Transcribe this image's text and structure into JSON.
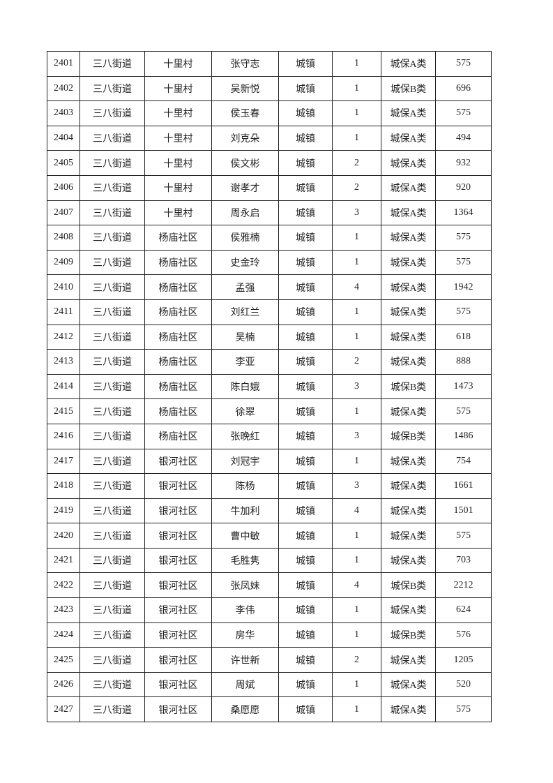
{
  "table": {
    "rows": [
      [
        "2401",
        "三八街道",
        "十里村",
        "张守志",
        "城镇",
        "1",
        "城保A类",
        "575"
      ],
      [
        "2402",
        "三八街道",
        "十里村",
        "吴新悦",
        "城镇",
        "1",
        "城保B类",
        "696"
      ],
      [
        "2403",
        "三八街道",
        "十里村",
        "侯玉春",
        "城镇",
        "1",
        "城保A类",
        "575"
      ],
      [
        "2404",
        "三八街道",
        "十里村",
        "刘克朵",
        "城镇",
        "1",
        "城保A类",
        "494"
      ],
      [
        "2405",
        "三八街道",
        "十里村",
        "侯文彬",
        "城镇",
        "2",
        "城保A类",
        "932"
      ],
      [
        "2406",
        "三八街道",
        "十里村",
        "谢孝才",
        "城镇",
        "2",
        "城保A类",
        "920"
      ],
      [
        "2407",
        "三八街道",
        "十里村",
        "周永启",
        "城镇",
        "3",
        "城保A类",
        "1364"
      ],
      [
        "2408",
        "三八街道",
        "杨庙社区",
        "侯雅楠",
        "城镇",
        "1",
        "城保A类",
        "575"
      ],
      [
        "2409",
        "三八街道",
        "杨庙社区",
        "史金玲",
        "城镇",
        "1",
        "城保A类",
        "575"
      ],
      [
        "2410",
        "三八街道",
        "杨庙社区",
        "孟强",
        "城镇",
        "4",
        "城保A类",
        "1942"
      ],
      [
        "2411",
        "三八街道",
        "杨庙社区",
        "刘红兰",
        "城镇",
        "1",
        "城保A类",
        "575"
      ],
      [
        "2412",
        "三八街道",
        "杨庙社区",
        "吴楠",
        "城镇",
        "1",
        "城保A类",
        "618"
      ],
      [
        "2413",
        "三八街道",
        "杨庙社区",
        "李亚",
        "城镇",
        "2",
        "城保A类",
        "888"
      ],
      [
        "2414",
        "三八街道",
        "杨庙社区",
        "陈白娥",
        "城镇",
        "3",
        "城保B类",
        "1473"
      ],
      [
        "2415",
        "三八街道",
        "杨庙社区",
        "徐翠",
        "城镇",
        "1",
        "城保A类",
        "575"
      ],
      [
        "2416",
        "三八街道",
        "杨庙社区",
        "张晚红",
        "城镇",
        "3",
        "城保B类",
        "1486"
      ],
      [
        "2417",
        "三八街道",
        "银河社区",
        "刘冠宇",
        "城镇",
        "1",
        "城保A类",
        "754"
      ],
      [
        "2418",
        "三八街道",
        "银河社区",
        "陈杨",
        "城镇",
        "3",
        "城保A类",
        "1661"
      ],
      [
        "2419",
        "三八街道",
        "银河社区",
        "牛加利",
        "城镇",
        "4",
        "城保A类",
        "1501"
      ],
      [
        "2420",
        "三八街道",
        "银河社区",
        "曹中敏",
        "城镇",
        "1",
        "城保A类",
        "575"
      ],
      [
        "2421",
        "三八街道",
        "银河社区",
        "毛胜隽",
        "城镇",
        "1",
        "城保A类",
        "703"
      ],
      [
        "2422",
        "三八街道",
        "银河社区",
        "张凤妹",
        "城镇",
        "4",
        "城保B类",
        "2212"
      ],
      [
        "2423",
        "三八街道",
        "银河社区",
        "李伟",
        "城镇",
        "1",
        "城保A类",
        "624"
      ],
      [
        "2424",
        "三八街道",
        "银河社区",
        "房华",
        "城镇",
        "1",
        "城保B类",
        "576"
      ],
      [
        "2425",
        "三八街道",
        "银河社区",
        "许世新",
        "城镇",
        "2",
        "城保A类",
        "1205"
      ],
      [
        "2426",
        "三八街道",
        "银河社区",
        "周斌",
        "城镇",
        "1",
        "城保A类",
        "520"
      ],
      [
        "2427",
        "三八街道",
        "银河社区",
        "桑愿愿",
        "城镇",
        "1",
        "城保A类",
        "575"
      ]
    ]
  }
}
